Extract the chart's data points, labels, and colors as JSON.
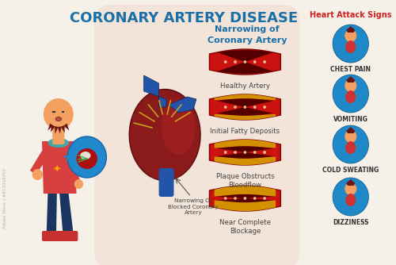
{
  "title": "CORONARY ARTERY DISEASE",
  "title_color": "#1a6fa8",
  "title_fontsize": 13,
  "bg_color": "#f5f0e8",
  "panel_color": "#f2e4d8",
  "narrowing_title": "Narrowing of\nCoronary Artery",
  "narrowing_color": "#1a6fa8",
  "artery_stages": [
    {
      "label": "Healthy Artery",
      "blockage": 0.0
    },
    {
      "label": "Initial Fatty Deposits",
      "blockage": 0.35
    },
    {
      "label": "Plaque Obstructs\nBloodflow",
      "blockage": 0.6
    },
    {
      "label": "Near Complete\nBlockage",
      "blockage": 0.82
    }
  ],
  "heart_attack_title": "Heart Attack Signs",
  "heart_attack_title_color": "#cc2222",
  "signs": [
    "CHEST PAIN",
    "VOMITING",
    "COLD SWEATING",
    "DIZZINESS"
  ],
  "sign_circle_color": "#1e88c8",
  "sign_text_color": "#333333",
  "label_artery": "Narrowing Or\nBlocked Coronary\nArtery",
  "watermark": "Adobe Stock | #813419950",
  "artery_outer_color": "#cc1111",
  "artery_dark_color": "#7a0000",
  "artery_yellow_color": "#d4a000",
  "artery_lumen_color": "#550000",
  "heart_color": "#8b1a1a",
  "heart_dark": "#5a0d0d",
  "aorta_color": "#2255aa",
  "coronary_color": "#c8a020"
}
